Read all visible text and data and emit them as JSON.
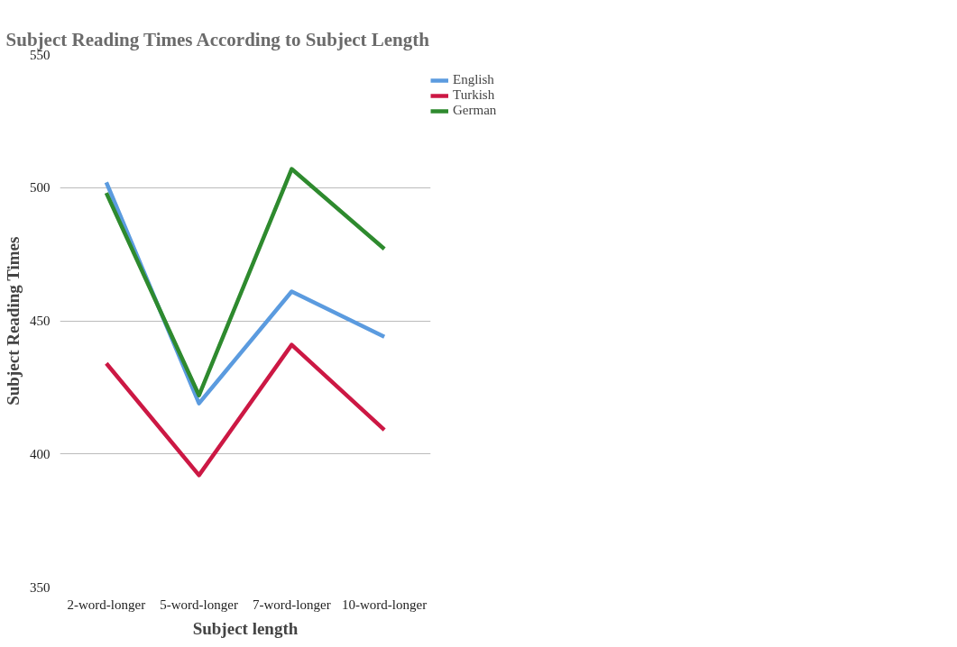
{
  "chart_data": {
    "type": "line",
    "title": "Subject Reading Times According to Subject Length",
    "xlabel": "Subject length",
    "ylabel": "Subject Reading Times",
    "categories": [
      "2-word-longer",
      "5-word-longer",
      "7-word-longer",
      "10-word-longer"
    ],
    "series": [
      {
        "name": "English",
        "color": "#5b9bdf",
        "values": [
          502,
          419,
          461,
          444
        ]
      },
      {
        "name": "Turkish",
        "color": "#cc1844",
        "values": [
          434,
          392,
          441,
          409
        ]
      },
      {
        "name": "German",
        "color": "#2e8a2e",
        "values": [
          498,
          422,
          507,
          477
        ]
      }
    ],
    "ylim": [
      350,
      550
    ],
    "yticks": [
      350,
      400,
      450,
      500,
      550
    ],
    "grid": "y",
    "legend": "top right",
    "marker": "none",
    "line_style": "solid"
  }
}
